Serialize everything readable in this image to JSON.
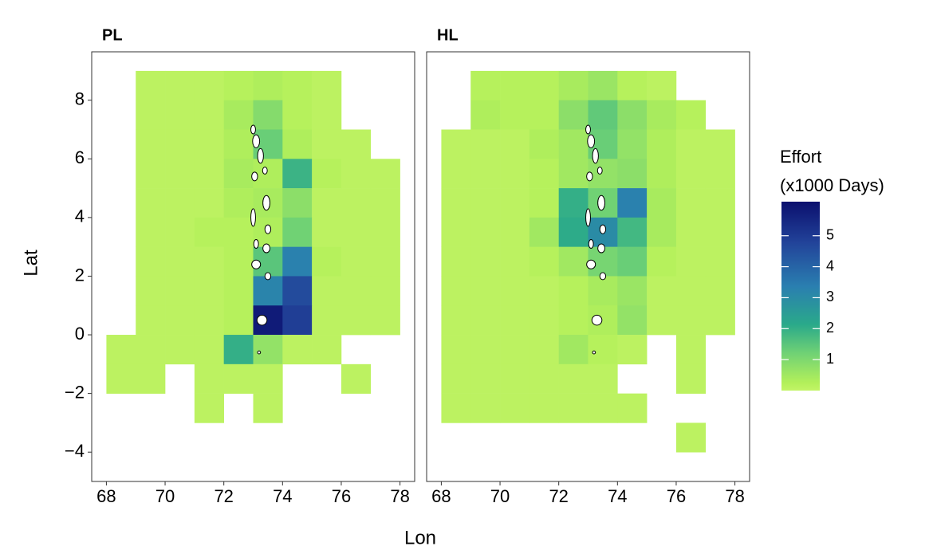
{
  "chart_data": {
    "type": "heatmap",
    "x_label": "Lon",
    "y_label": "Lat",
    "legend_title": [
      "Effort",
      "(x1000 Days)"
    ],
    "xlim": [
      67.5,
      78.5
    ],
    "ylim": [
      -5,
      9.65
    ],
    "xticks": [
      68,
      70,
      72,
      74,
      76,
      78
    ],
    "yticks": [
      {
        "value": -4,
        "label": "−4"
      },
      {
        "value": -2,
        "label": "−2"
      },
      0,
      2,
      4,
      6,
      8
    ],
    "lon": [
      68.5,
      69.5,
      70.5,
      71.5,
      72.5,
      73.5,
      74.5,
      75.5,
      76.5,
      77.5
    ],
    "lat": [
      8.5,
      7.5,
      6.5,
      5.5,
      4.5,
      3.5,
      2.5,
      1.5,
      0.5,
      -0.5,
      -1.5,
      -2.5,
      -3.5
    ],
    "clim": [
      0,
      6.1
    ],
    "colorbar_ticks": [
      1,
      2,
      3,
      4,
      5
    ],
    "colorscale": [
      [
        0,
        "#c2f466"
      ],
      [
        0.04,
        "#b3f05a"
      ],
      [
        0.2,
        "#6fd175"
      ],
      [
        0.35,
        "#2aa98a"
      ],
      [
        0.55,
        "#2a7fb0"
      ],
      [
        0.78,
        "#22449a"
      ],
      [
        1,
        "#0b0f6e"
      ]
    ],
    "panels": [
      {
        "title": "PL",
        "values": [
          [
            null,
            0.1,
            0.1,
            0.1,
            0.2,
            0.3,
            0.2,
            0.1,
            null,
            null
          ],
          [
            null,
            0.1,
            0.1,
            0.1,
            0.4,
            0.9,
            0.2,
            0.1,
            null,
            null
          ],
          [
            null,
            0.1,
            0.1,
            0.1,
            0.3,
            1.3,
            0.3,
            0.1,
            0.1,
            null
          ],
          [
            null,
            0.1,
            0.1,
            0.1,
            0.4,
            0.3,
            1.9,
            0.2,
            0.1,
            0.1
          ],
          [
            null,
            0.1,
            0.1,
            0.1,
            0.3,
            0.4,
            0.8,
            0.1,
            0.1,
            0.1
          ],
          [
            null,
            0.1,
            0.1,
            0.2,
            0.2,
            0.3,
            1.2,
            0.1,
            0.1,
            0.1
          ],
          [
            null,
            0.1,
            0.1,
            0.1,
            0.2,
            1.5,
            3.3,
            0.2,
            0.1,
            0.1
          ],
          [
            null,
            0.1,
            0.1,
            0.1,
            0.2,
            3.2,
            4.6,
            0.1,
            0.1,
            0.1
          ],
          [
            null,
            0.1,
            0.1,
            0.1,
            0.2,
            5.8,
            4.9,
            0.1,
            0.1,
            0.1
          ],
          [
            0.1,
            0.1,
            0.1,
            0.1,
            2.0,
            0.7,
            0.1,
            0.1,
            null,
            null
          ],
          [
            0.1,
            0.1,
            null,
            0.1,
            0.1,
            0.1,
            null,
            null,
            0.1,
            null
          ],
          [
            null,
            null,
            null,
            0.1,
            null,
            0.1,
            null,
            null,
            null,
            null
          ],
          [
            null,
            null,
            null,
            null,
            null,
            null,
            null,
            null,
            null,
            null
          ]
        ]
      },
      {
        "title": "HL",
        "values": [
          [
            null,
            0.2,
            0.2,
            0.2,
            0.4,
            0.6,
            0.2,
            0.1,
            null,
            null
          ],
          [
            null,
            0.3,
            0.2,
            0.2,
            0.8,
            1.4,
            0.8,
            0.4,
            0.2,
            null
          ],
          [
            0.1,
            0.1,
            0.1,
            0.3,
            0.5,
            1.3,
            0.7,
            0.3,
            0.1,
            0.1
          ],
          [
            0.1,
            0.1,
            0.1,
            0.2,
            0.5,
            0.7,
            0.8,
            0.3,
            0.1,
            0.1
          ],
          [
            0.1,
            0.1,
            0.1,
            0.2,
            2.0,
            1.2,
            3.3,
            0.4,
            0.1,
            0.1
          ],
          [
            0.1,
            0.1,
            0.1,
            0.5,
            2.1,
            3.0,
            1.8,
            0.4,
            0.1,
            0.1
          ],
          [
            0.1,
            0.1,
            0.1,
            0.2,
            0.5,
            1.1,
            1.3,
            0.2,
            0.1,
            0.1
          ],
          [
            0.1,
            0.1,
            0.1,
            0.1,
            0.2,
            0.4,
            0.6,
            0.1,
            0.1,
            0.1
          ],
          [
            0.1,
            0.1,
            0.1,
            0.1,
            0.2,
            0.3,
            0.7,
            0.1,
            0.1,
            0.1
          ],
          [
            0.1,
            0.1,
            0.1,
            0.1,
            0.5,
            0.2,
            0.1,
            null,
            0.1,
            null
          ],
          [
            0.1,
            0.1,
            0.1,
            0.1,
            0.1,
            0.1,
            null,
            null,
            0.1,
            null
          ],
          [
            0.1,
            0.1,
            0.1,
            0.1,
            0.1,
            0.1,
            0.1,
            null,
            null,
            null
          ],
          [
            null,
            null,
            null,
            null,
            null,
            null,
            null,
            null,
            0.1,
            null
          ]
        ]
      }
    ]
  }
}
